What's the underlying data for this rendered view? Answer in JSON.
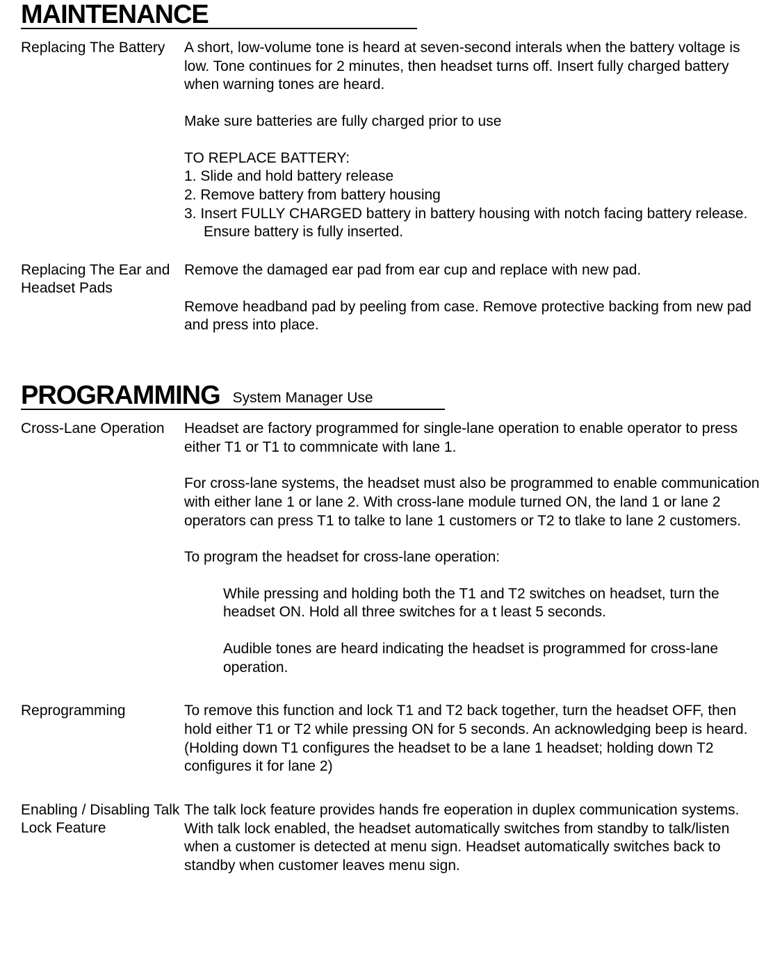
{
  "maintenance": {
    "title": "MAINTENANCE",
    "battery": {
      "label": "Replacing The Battery",
      "intro": "A short, low-volume tone is heard at seven-second interals when the battery voltage is low.  Tone continues for 2 minutes, then headset turns off.  Insert fully charged battery when warning tones are heard.",
      "charged_note": "Make sure batteries are fully charged prior to use",
      "replace_heading": "TO REPLACE BATTERY:",
      "steps": [
        "1.  Slide and hold battery release",
        "2.  Remove battery from battery housing",
        "3.  Insert FULLY CHARGED battery in battery housing with notch facing battery release.  Ensure battery is fully inserted."
      ]
    },
    "pads": {
      "label": "Replacing The Ear and Headset Pads",
      "p1": "Remove the damaged ear pad from ear cup and replace with new pad.",
      "p2": "Remove headband pad by peeling from case.  Remove protective backing from new pad and press into place."
    }
  },
  "programming": {
    "title": "PROGRAMMING",
    "subtitle": "System Manager Use",
    "crosslane": {
      "label": "Cross-Lane Operation",
      "p1": "Headset are factory programmed for single-lane operation to enable operator to press either T1 or T1 to commnicate with lane 1.",
      "p2": "For cross-lane systems, the headset must also be programmed to enable communication with either lane 1 or lane 2.  With cross-lane module turned ON, the land 1 or lane 2 operators can press T1 to talke to lane 1 customers or T2 to tlake to lane 2 customers.",
      "p3": "To program the headset for cross-lane operation:",
      "i1": "While pressing and holding both the T1 and T2 switches on headset, turn the headset ON.  Hold all three switches for a t least 5 seconds.",
      "i2": "Audible tones are heard indicating the headset is programmed for cross-lane operation."
    },
    "reprogramming": {
      "label": "Reprogramming",
      "p1": "To remove this function and lock T1 and T2 back together, turn the headset OFF, then hold either T1 or T2 while pressing ON for 5 seconds.  An acknowledging beep is heard.  (Holding down T1 configures the headset to be a lane 1 headset; holding down T2 configures it for lane 2)"
    },
    "talklock": {
      "label": "Enabling / Disabling Talk Lock Feature",
      "p1": "The talk lock feature provides hands fre eoperation in duplex communication systems.  With talk lock enabled, the headset automatically switches from standby to talk/listen when a customer is detected at menu sign.  Headset automatically switches back to standby when customer leaves menu sign."
    }
  },
  "style": {
    "font_body_pt": 21,
    "font_title_pt": 38,
    "text_color": "#000000",
    "background_color": "#ffffff",
    "rule_color": "#000000",
    "rule_width_maintenance": 570,
    "rule_width_programming": 610
  }
}
